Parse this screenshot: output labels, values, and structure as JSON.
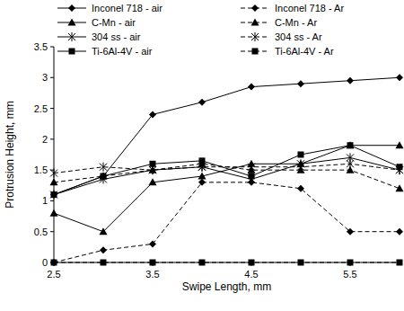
{
  "chart_data": {
    "type": "line",
    "x_label": "Swipe Length, mm",
    "y_label": "Protrusion Height, mm",
    "x": [
      2.5,
      3,
      3.5,
      4,
      4.5,
      5,
      5.5,
      6
    ],
    "xlim": [
      2.5,
      6
    ],
    "xticks": [
      2.5,
      3.5,
      4.5,
      5.5
    ],
    "ylim": [
      0,
      3.5
    ],
    "yticks": [
      0,
      0.5,
      1,
      1.5,
      2,
      2.5,
      3,
      3.5
    ],
    "grid": false,
    "legend": "top",
    "series": [
      {
        "name": "Inconel 718 - air",
        "color": "#000000",
        "marker": "diamond",
        "line_style": "solid",
        "values": [
          1.1,
          1.4,
          2.4,
          2.6,
          2.85,
          2.9,
          2.95,
          3.0
        ]
      },
      {
        "name": "Inconel 718 - Ar",
        "color": "#000000",
        "marker": "diamond",
        "line_style": "dashed",
        "values": [
          0,
          0.2,
          0.3,
          1.3,
          1.3,
          1.2,
          0.5,
          0.5
        ]
      },
      {
        "name": "C-Mn - air",
        "color": "#000000",
        "marker": "triangle",
        "line_style": "solid",
        "values": [
          0.8,
          0.5,
          1.3,
          1.4,
          1.6,
          1.6,
          1.9,
          1.9
        ]
      },
      {
        "name": "C-Mn - Ar",
        "color": "#000000",
        "marker": "triangle",
        "line_style": "dashed",
        "values": [
          1.3,
          1.4,
          1.5,
          1.6,
          1.5,
          1.5,
          1.5,
          1.2
        ]
      },
      {
        "name": "304 ss - air",
        "color": "#000000",
        "marker": "star",
        "line_style": "solid",
        "values": [
          1.1,
          1.35,
          1.5,
          1.55,
          1.35,
          1.6,
          1.7,
          1.5
        ]
      },
      {
        "name": "304 ss - Ar",
        "color": "#000000",
        "marker": "star",
        "line_style": "dashed",
        "values": [
          1.45,
          1.55,
          1.5,
          1.55,
          1.55,
          1.55,
          1.6,
          1.5
        ]
      },
      {
        "name": "Ti-6Al-4V - air",
        "color": "#000000",
        "marker": "square",
        "line_style": "solid",
        "values": [
          1.1,
          1.4,
          1.6,
          1.65,
          1.4,
          1.75,
          1.9,
          1.55
        ]
      },
      {
        "name": "Ti-6Al-4V - Ar",
        "color": "#000000",
        "marker": "square",
        "line_style": "dashed",
        "values": [
          0,
          0,
          0,
          0,
          0,
          0,
          0,
          0
        ]
      }
    ]
  }
}
